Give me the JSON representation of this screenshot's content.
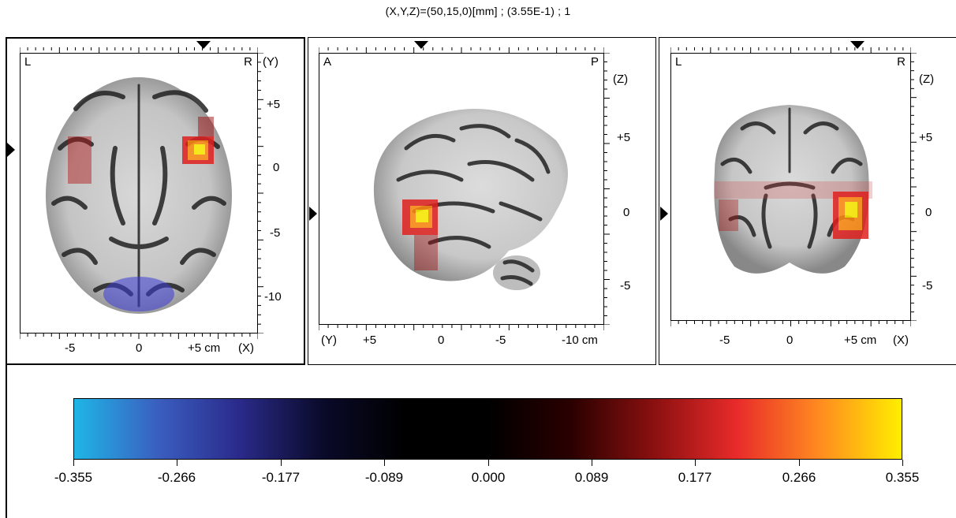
{
  "header": {
    "readout": "(X,Y,Z)=(50,15,0)[mm] ; (3.55E-1) ; 1"
  },
  "panels": {
    "axial": {
      "corner_left": "L",
      "corner_right": "R",
      "vertical_axis_label": "(Y)",
      "horizontal_axis_label": "(X)",
      "vertical_ticks": [
        "+5",
        "0",
        "-5",
        "-10"
      ],
      "horizontal_ticks": [
        "-5",
        "0",
        "+5 cm"
      ]
    },
    "sagittal": {
      "corner_left": "A",
      "corner_right": "P",
      "vertical_axis_label": "(Z)",
      "horizontal_axis_label": "(Y)",
      "vertical_ticks": [
        "+5",
        "0",
        "-5"
      ],
      "horizontal_ticks": [
        "+5",
        "0",
        "-5",
        "-10 cm"
      ]
    },
    "coronal": {
      "corner_left": "L",
      "corner_right": "R",
      "vertical_axis_label": "(Z)",
      "horizontal_axis_label": "(X)",
      "vertical_ticks": [
        "+5",
        "0",
        "-5"
      ],
      "horizontal_ticks": [
        "-5",
        "0",
        "+5 cm"
      ]
    }
  },
  "colorbar": {
    "tick_labels": [
      "-0.355",
      "-0.266",
      "-0.177",
      "-0.089",
      "0.000",
      "0.089",
      "0.177",
      "0.266",
      "0.355"
    ],
    "gradient_colors": [
      "#1fb6e6",
      "#3a5fc0",
      "#2a2a8a",
      "#0a0a2a",
      "#000000",
      "#000000",
      "#2a0000",
      "#8a1010",
      "#e82a2a",
      "#ff8a20",
      "#ffee00"
    ]
  }
}
